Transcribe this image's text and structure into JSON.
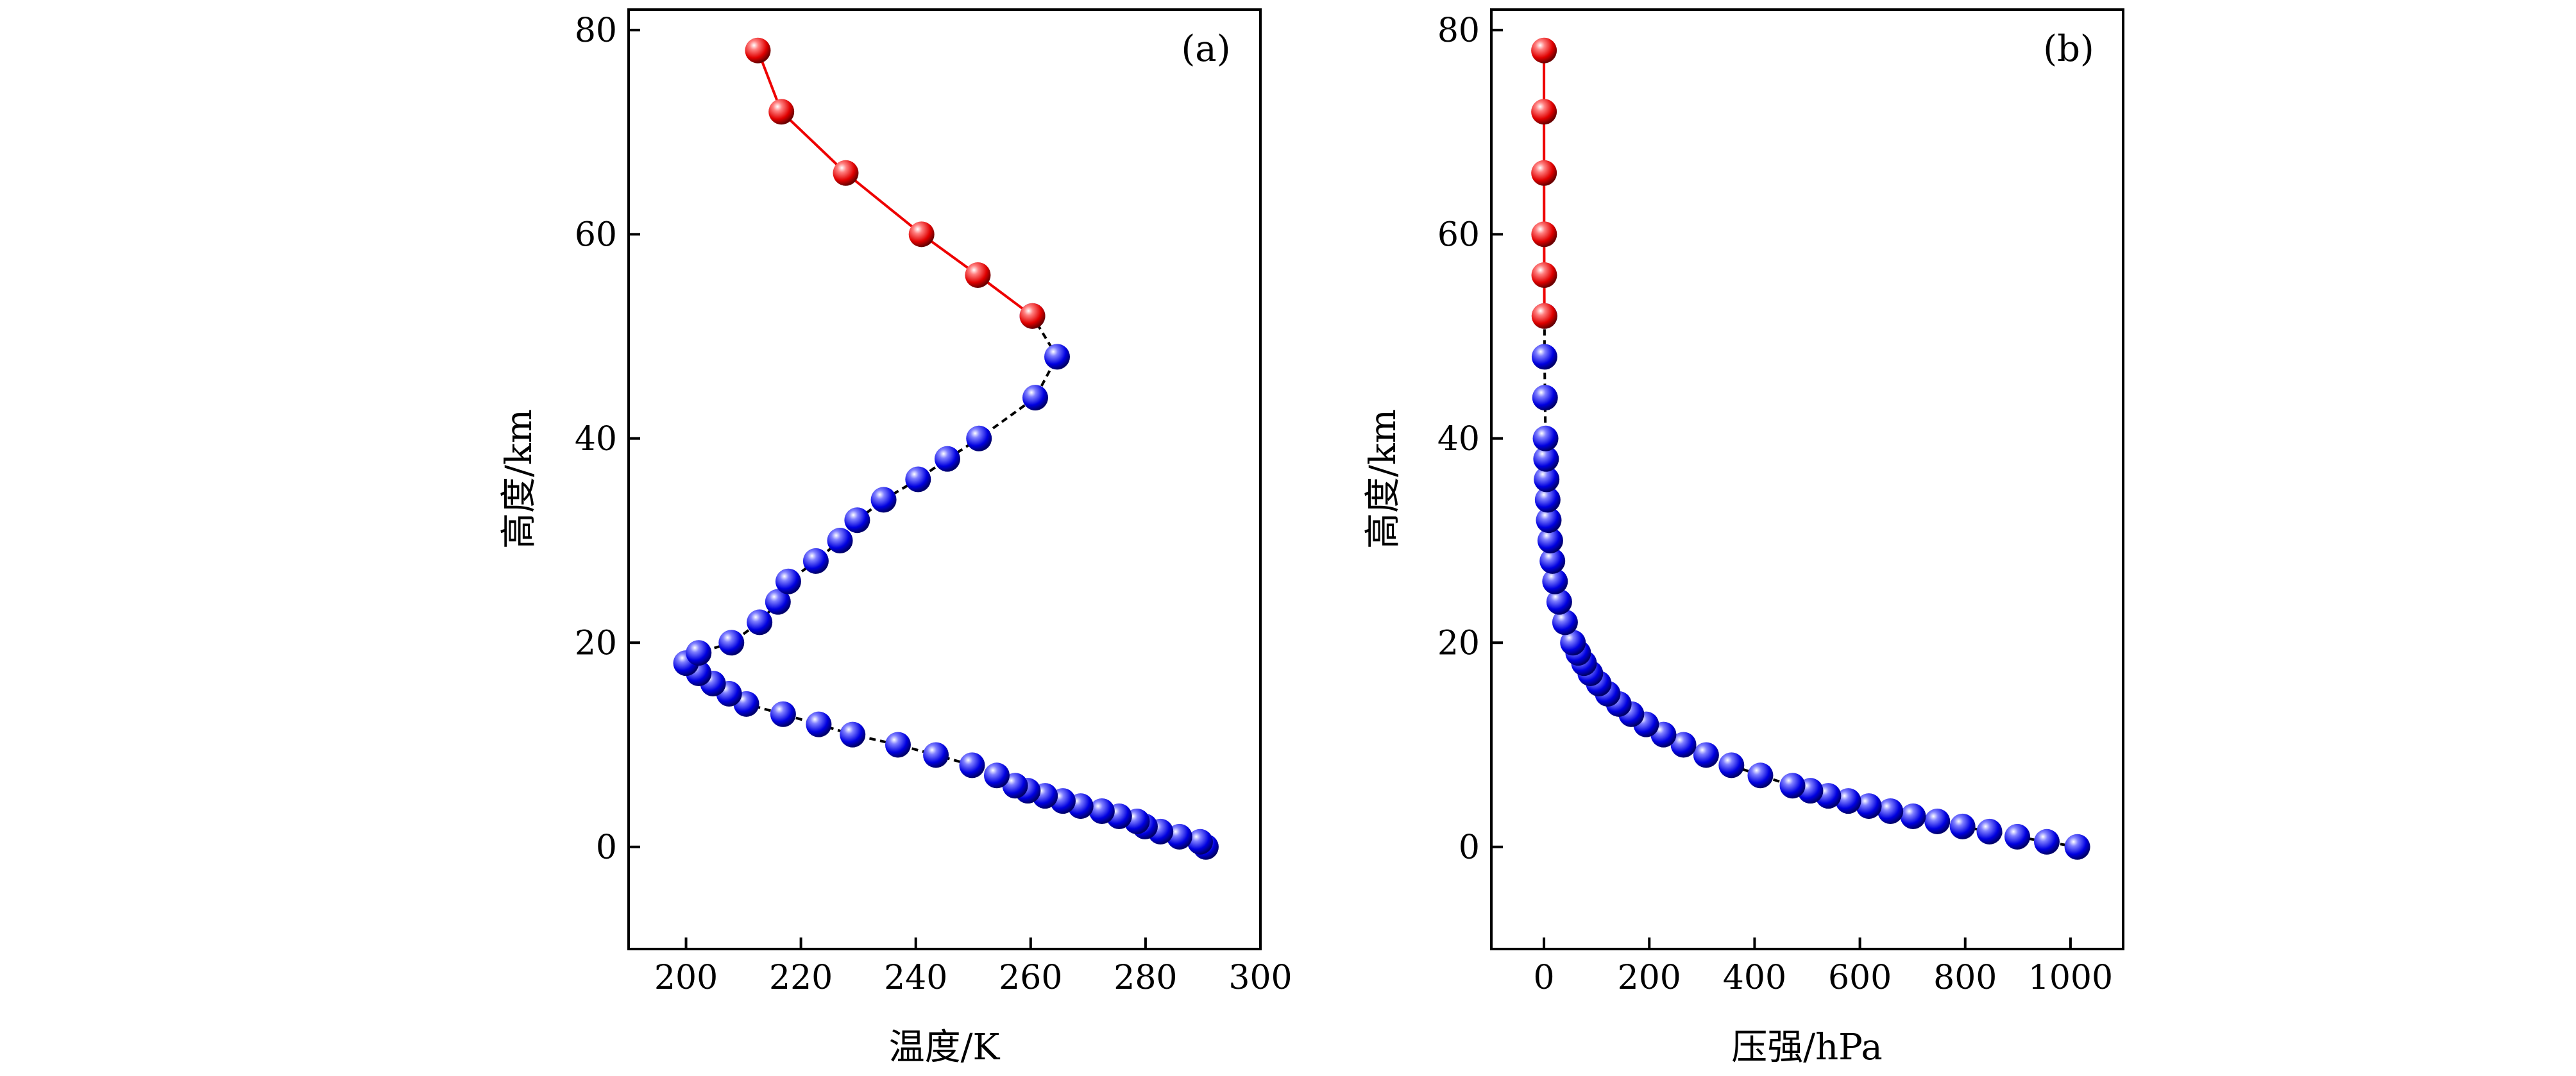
{
  "chart_data": [
    {
      "type": "line",
      "panel_label": "(a)",
      "xlabel": "温度/K",
      "ylabel": "高度/km",
      "xlim": [
        190,
        300
      ],
      "ylim": [
        -10,
        82
      ],
      "xticks": [
        200,
        220,
        240,
        260,
        280,
        300
      ],
      "yticks": [
        0,
        20,
        40,
        60,
        80
      ],
      "series": [
        {
          "color": "#0000ee",
          "line_color": "#000000",
          "line_style": "dashed",
          "marker": "sphere",
          "points": [
            [
              290.5,
              0
            ],
            [
              289.5,
              0.5
            ],
            [
              285.9,
              1
            ],
            [
              282.6,
              1.5
            ],
            [
              279.9,
              2
            ],
            [
              278.5,
              2.5
            ],
            [
              275.4,
              3
            ],
            [
              272.4,
              3.5
            ],
            [
              268.7,
              4
            ],
            [
              265.6,
              4.5
            ],
            [
              262.5,
              5
            ],
            [
              259.5,
              5.5
            ],
            [
              257.3,
              6
            ],
            [
              254.1,
              7
            ],
            [
              249.8,
              8
            ],
            [
              243.5,
              9
            ],
            [
              236.9,
              10
            ],
            [
              229.0,
              11
            ],
            [
              223.1,
              12
            ],
            [
              216.9,
              13
            ],
            [
              210.5,
              14
            ],
            [
              207.5,
              15
            ],
            [
              204.7,
              16
            ],
            [
              202.2,
              17
            ],
            [
              200.0,
              18
            ],
            [
              202.2,
              19
            ],
            [
              207.9,
              20
            ],
            [
              212.8,
              22
            ],
            [
              216.0,
              24
            ],
            [
              217.8,
              26
            ],
            [
              222.6,
              28
            ],
            [
              226.8,
              30
            ],
            [
              229.8,
              32
            ],
            [
              234.4,
              34
            ],
            [
              240.4,
              36
            ],
            [
              245.5,
              38
            ],
            [
              251.0,
              40
            ],
            [
              260.8,
              44
            ],
            [
              264.6,
              48
            ],
            [
              260.3,
              52
            ]
          ]
        },
        {
          "color": "#ee0000",
          "line_color": "#ee0000",
          "line_style": "solid",
          "marker": "sphere",
          "points": [
            [
              260.3,
              52
            ],
            [
              250.8,
              56
            ],
            [
              241.0,
              60
            ],
            [
              227.8,
              66
            ],
            [
              216.6,
              72
            ],
            [
              212.5,
              78
            ]
          ]
        }
      ]
    },
    {
      "type": "line",
      "panel_label": "(b)",
      "xlabel": "压强/hPa",
      "ylabel": "高度/km",
      "xlim": [
        -100,
        1100
      ],
      "ylim": [
        -10,
        82
      ],
      "xticks": [
        0,
        200,
        400,
        600,
        800,
        1000
      ],
      "yticks": [
        0,
        20,
        40,
        60,
        80
      ],
      "series": [
        {
          "color": "#0000ee",
          "line_color": "#000000",
          "line_style": "dashed",
          "marker": "sphere",
          "points": [
            [
              1013,
              0
            ],
            [
              955,
              0.5
            ],
            [
              899,
              1
            ],
            [
              846,
              1.5
            ],
            [
              795,
              2
            ],
            [
              747,
              2.5
            ],
            [
              701,
              3
            ],
            [
              658,
              3.5
            ],
            [
              617,
              4
            ],
            [
              578,
              4.5
            ],
            [
              540,
              5
            ],
            [
              506,
              5.5
            ],
            [
              472,
              6
            ],
            [
              411,
              7
            ],
            [
              356,
              8
            ],
            [
              308,
              9
            ],
            [
              265,
              10
            ],
            [
              227,
              11
            ],
            [
              194,
              12
            ],
            [
              166,
              13
            ],
            [
              142,
              14
            ],
            [
              121,
              15
            ],
            [
              104,
              16
            ],
            [
              88,
              17
            ],
            [
              76,
              18
            ],
            [
              65,
              19
            ],
            [
              55,
              20
            ],
            [
              40,
              22
            ],
            [
              29,
              24
            ],
            [
              21,
              26
            ],
            [
              16,
              28
            ],
            [
              12,
              30
            ],
            [
              9,
              32
            ],
            [
              7,
              34
            ],
            [
              5,
              36
            ],
            [
              4,
              38
            ],
            [
              3,
              40
            ],
            [
              2,
              44
            ],
            [
              1,
              48
            ],
            [
              1,
              52
            ]
          ]
        },
        {
          "color": "#ee0000",
          "line_color": "#ee0000",
          "line_style": "solid",
          "marker": "sphere",
          "points": [
            [
              0.8,
              52
            ],
            [
              0.5,
              56
            ],
            [
              0.3,
              60
            ],
            [
              0.1,
              66
            ],
            [
              0.05,
              72
            ],
            [
              0.02,
              78
            ]
          ]
        }
      ]
    }
  ]
}
